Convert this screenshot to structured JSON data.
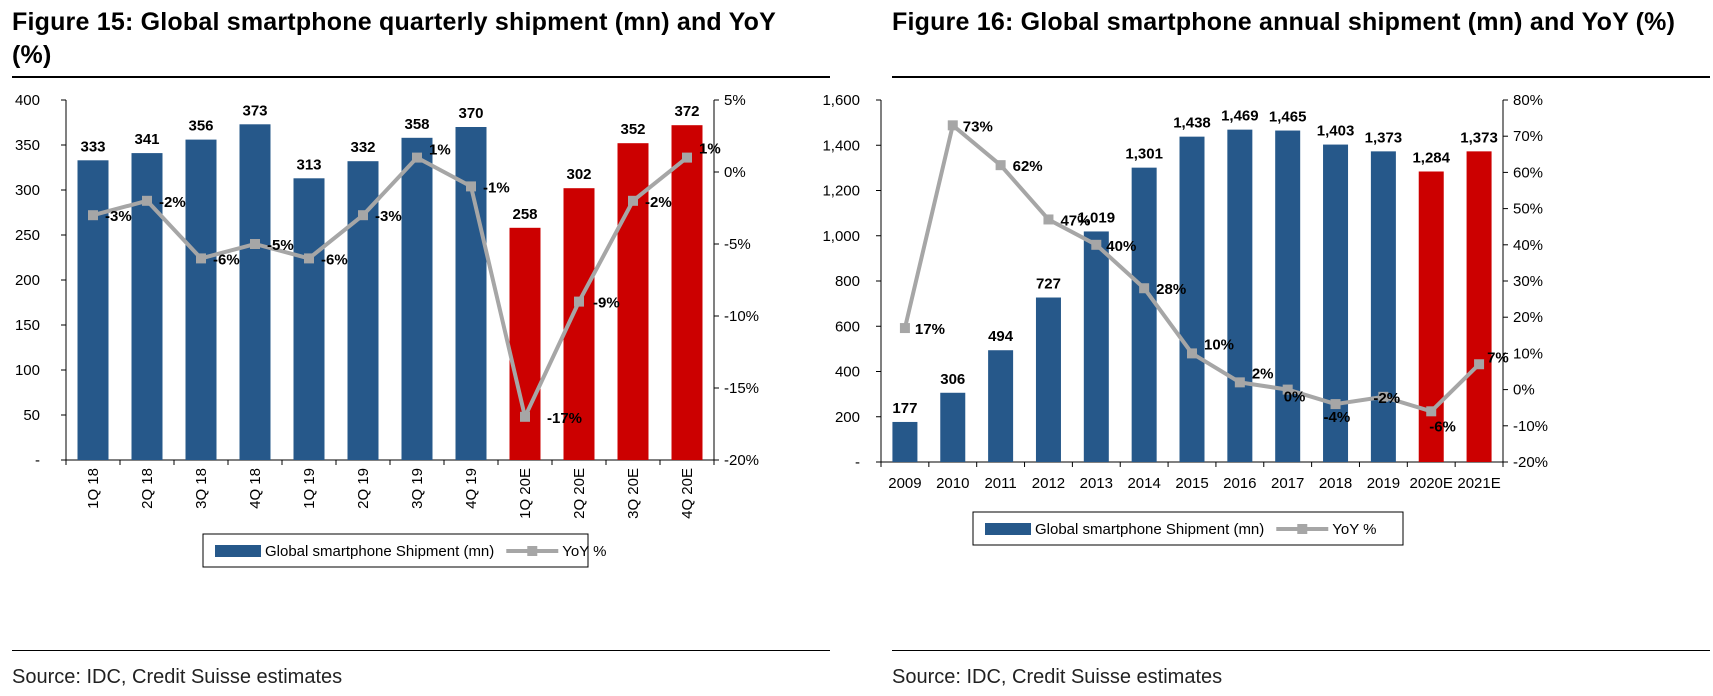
{
  "figures": [
    {
      "title": "Figure 15: Global smartphone quarterly shipment (mn) and YoY (%)",
      "source": "Source: IDC, Credit Suisse estimates"
    },
    {
      "title": "Figure 16: Global smartphone annual shipment (mn) and YoY (%)",
      "source": "Source: IDC, Credit Suisse estimates"
    }
  ],
  "colors": {
    "actual": "#26588a",
    "estimate": "#cc0000",
    "yoy_line": "#a6a6a6"
  },
  "chart_data": [
    {
      "type": "bar",
      "title": "Figure 15: Global smartphone quarterly shipment (mn) and YoY (%)",
      "categories": [
        "1Q 18",
        "2Q 18",
        "3Q 18",
        "4Q 18",
        "1Q 19",
        "2Q 19",
        "3Q 19",
        "4Q 19",
        "1Q 20E",
        "2Q 20E",
        "3Q 20E",
        "4Q 20E"
      ],
      "estimate_start_index": 8,
      "series": [
        {
          "name": "Global smartphone Shipment (mn)",
          "kind": "bar",
          "axis": "left",
          "values": [
            333,
            341,
            356,
            373,
            313,
            332,
            358,
            370,
            258,
            302,
            352,
            372
          ],
          "labels": [
            "333",
            "341",
            "356",
            "373",
            "313",
            "332",
            "358",
            "370",
            "258",
            "302",
            "352",
            "372"
          ]
        },
        {
          "name": "YoY %",
          "kind": "line",
          "axis": "right",
          "values": [
            -3,
            -2,
            -6,
            -5,
            -6,
            -3,
            1,
            -1,
            -17,
            -9,
            -2,
            1
          ],
          "labels": [
            "-3%",
            "-2%",
            "-6%",
            "-5%",
            "-6%",
            "-3%",
            "1%",
            "-1%",
            "-17%",
            "-9%",
            "-2%",
            "1%"
          ]
        }
      ],
      "y_left": {
        "min": 0,
        "max": 400,
        "step": 50,
        "tick_labels": [
          "-",
          "50",
          "100",
          "150",
          "200",
          "250",
          "300",
          "350",
          "400"
        ]
      },
      "y_right": {
        "min": -20,
        "max": 5,
        "step": 5,
        "tick_labels": [
          "-20%",
          "-15%",
          "-10%",
          "-5%",
          "0%",
          "5%"
        ]
      },
      "x_label_rotation": "vertical",
      "grid": false,
      "legend_position": "bottom",
      "legend": [
        "Global smartphone Shipment (mn)",
        "YoY %"
      ]
    },
    {
      "type": "bar",
      "title": "Figure 16: Global smartphone annual shipment (mn) and YoY (%)",
      "categories": [
        "2009",
        "2010",
        "2011",
        "2012",
        "2013",
        "2014",
        "2015",
        "2016",
        "2017",
        "2018",
        "2019",
        "2020E",
        "2021E"
      ],
      "estimate_start_index": 11,
      "series": [
        {
          "name": "Global smartphone Shipment (mn)",
          "kind": "bar",
          "axis": "left",
          "values": [
            177,
            306,
            494,
            727,
            1019,
            1301,
            1438,
            1469,
            1465,
            1403,
            1373,
            1284,
            1373
          ],
          "labels": [
            "177",
            "306",
            "494",
            "727",
            "1,019",
            "1,301",
            "1,438",
            "1,469",
            "1,465",
            "1,403",
            "1,373",
            "1,284",
            "1,373"
          ]
        },
        {
          "name": "YoY %",
          "kind": "line",
          "axis": "right",
          "values": [
            17,
            73,
            62,
            47,
            40,
            28,
            10,
            2,
            0,
            -4,
            -2,
            -6,
            7
          ],
          "labels": [
            "17%",
            "73%",
            "62%",
            "47%",
            "40%",
            "28%",
            "10%",
            "2%",
            "0%",
            "-4%",
            "-2%",
            "-6%",
            "7%"
          ]
        }
      ],
      "y_left": {
        "min": 0,
        "max": 1600,
        "step": 200,
        "tick_labels": [
          "-",
          "200",
          "400",
          "600",
          "800",
          "1,000",
          "1,200",
          "1,400",
          "1,600"
        ]
      },
      "y_right": {
        "min": -20,
        "max": 80,
        "step": 10,
        "tick_labels": [
          "-20%",
          "-10%",
          "0%",
          "10%",
          "20%",
          "30%",
          "40%",
          "50%",
          "60%",
          "70%",
          "80%"
        ]
      },
      "x_label_rotation": "horizontal",
      "grid": false,
      "legend_position": "bottom",
      "legend": [
        "Global smartphone Shipment (mn)",
        "YoY %"
      ]
    }
  ]
}
